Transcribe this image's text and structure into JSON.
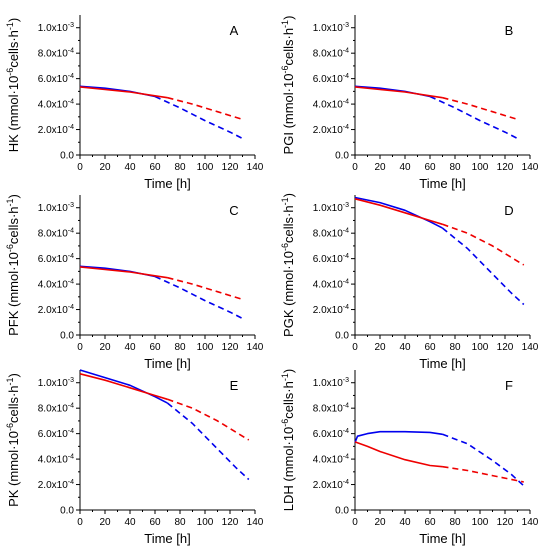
{
  "chart_data": [
    {
      "type": "line",
      "panel_label": "A",
      "xlabel": "Time [h]",
      "ylabel_prefix": "HK (mmol·10",
      "ylabel_exp": "-6",
      "ylabel_mid": "cells·h",
      "ylabel_exp2": "-1",
      "ylabel_suffix": ")",
      "xlim": [
        0,
        140
      ],
      "ylim": [
        0,
        0.0011
      ],
      "x_ticks": [
        "0",
        "20",
        "40",
        "60",
        "80",
        "100",
        "120",
        "140"
      ],
      "y_ticks": [
        {
          "v": 0.0,
          "m": "0.0",
          "e": ""
        },
        {
          "v": 0.0002,
          "m": "2.0x10",
          "e": "-4"
        },
        {
          "v": 0.0004,
          "m": "4.0x10",
          "e": "-4"
        },
        {
          "v": 0.0006,
          "m": "6.0x10",
          "e": "-4"
        },
        {
          "v": 0.0008,
          "m": "8.0x10",
          "e": "-4"
        },
        {
          "v": 0.001,
          "m": "1.0x10",
          "e": "-3"
        }
      ],
      "series": [
        {
          "color": "#0000ee",
          "style": "solid",
          "x": [
            0,
            20,
            40,
            60
          ],
          "y": [
            0.00054,
            0.000525,
            0.0005,
            0.00046
          ]
        },
        {
          "color": "#0000ee",
          "style": "dashed",
          "x": [
            60,
            80,
            100,
            120,
            130
          ],
          "y": [
            0.00046,
            0.00037,
            0.00027,
            0.00018,
            0.00013
          ]
        },
        {
          "color": "#ee0000",
          "style": "solid",
          "x": [
            0,
            20,
            40,
            60,
            70
          ],
          "y": [
            0.000535,
            0.000515,
            0.000495,
            0.000465,
            0.00045
          ]
        },
        {
          "color": "#ee0000",
          "style": "dashed",
          "x": [
            70,
            90,
            110,
            130
          ],
          "y": [
            0.00045,
            0.0004,
            0.00034,
            0.00028
          ]
        }
      ]
    },
    {
      "type": "line",
      "panel_label": "B",
      "xlabel": "Time [h]",
      "ylabel_prefix": "PGI (mmol·10",
      "ylabel_exp": "-6",
      "ylabel_mid": "cells·h",
      "ylabel_exp2": "-1",
      "ylabel_suffix": ")",
      "xlim": [
        0,
        140
      ],
      "ylim": [
        0,
        0.0011
      ],
      "x_ticks": [
        "0",
        "20",
        "40",
        "60",
        "80",
        "100",
        "120",
        "140"
      ],
      "y_ticks": [
        {
          "v": 0.0,
          "m": "0.0",
          "e": ""
        },
        {
          "v": 0.0002,
          "m": "2.0x10",
          "e": "-4"
        },
        {
          "v": 0.0004,
          "m": "4.0x10",
          "e": "-4"
        },
        {
          "v": 0.0006,
          "m": "6.0x10",
          "e": "-4"
        },
        {
          "v": 0.0008,
          "m": "8.0x10",
          "e": "-4"
        },
        {
          "v": 0.001,
          "m": "1.0x10",
          "e": "-3"
        }
      ],
      "series": [
        {
          "color": "#0000ee",
          "style": "solid",
          "x": [
            0,
            20,
            40,
            60
          ],
          "y": [
            0.00054,
            0.000525,
            0.0005,
            0.00046
          ]
        },
        {
          "color": "#0000ee",
          "style": "dashed",
          "x": [
            60,
            80,
            100,
            120,
            130
          ],
          "y": [
            0.00046,
            0.00037,
            0.00027,
            0.00018,
            0.00013
          ]
        },
        {
          "color": "#ee0000",
          "style": "solid",
          "x": [
            0,
            20,
            40,
            60,
            70
          ],
          "y": [
            0.000535,
            0.000515,
            0.000495,
            0.000465,
            0.00045
          ]
        },
        {
          "color": "#ee0000",
          "style": "dashed",
          "x": [
            70,
            90,
            110,
            130
          ],
          "y": [
            0.00045,
            0.0004,
            0.00034,
            0.00028
          ]
        }
      ]
    },
    {
      "type": "line",
      "panel_label": "C",
      "xlabel": "Time [h]",
      "ylabel_prefix": "PFK (mmol·10",
      "ylabel_exp": "-6",
      "ylabel_mid": "cells·h",
      "ylabel_exp2": "-1",
      "ylabel_suffix": ")",
      "xlim": [
        0,
        140
      ],
      "ylim": [
        0,
        0.0011
      ],
      "x_ticks": [
        "0",
        "20",
        "40",
        "60",
        "80",
        "100",
        "120",
        "140"
      ],
      "y_ticks": [
        {
          "v": 0.0,
          "m": "0.0",
          "e": ""
        },
        {
          "v": 0.0002,
          "m": "2.0x10",
          "e": "-4"
        },
        {
          "v": 0.0004,
          "m": "4.0x10",
          "e": "-4"
        },
        {
          "v": 0.0006,
          "m": "6.0x10",
          "e": "-4"
        },
        {
          "v": 0.0008,
          "m": "8.0x10",
          "e": "-4"
        },
        {
          "v": 0.001,
          "m": "1.0x10",
          "e": "-3"
        }
      ],
      "series": [
        {
          "color": "#0000ee",
          "style": "solid",
          "x": [
            0,
            20,
            40,
            60
          ],
          "y": [
            0.00054,
            0.000525,
            0.0005,
            0.00046
          ]
        },
        {
          "color": "#0000ee",
          "style": "dashed",
          "x": [
            60,
            80,
            100,
            120,
            130
          ],
          "y": [
            0.00046,
            0.00037,
            0.00027,
            0.00018,
            0.00013
          ]
        },
        {
          "color": "#ee0000",
          "style": "solid",
          "x": [
            0,
            20,
            40,
            60,
            70
          ],
          "y": [
            0.000535,
            0.000515,
            0.000495,
            0.000465,
            0.00045
          ]
        },
        {
          "color": "#ee0000",
          "style": "dashed",
          "x": [
            70,
            90,
            110,
            130
          ],
          "y": [
            0.00045,
            0.0004,
            0.00034,
            0.00028
          ]
        }
      ]
    },
    {
      "type": "line",
      "panel_label": "D",
      "xlabel": "Time [h]",
      "ylabel_prefix": "PGK (mmol·10",
      "ylabel_exp": "-6",
      "ylabel_mid": "cells·h",
      "ylabel_exp2": "-1",
      "ylabel_suffix": ")",
      "xlim": [
        0,
        140
      ],
      "ylim": [
        0,
        0.0011
      ],
      "x_ticks": [
        "0",
        "20",
        "40",
        "60",
        "80",
        "100",
        "120",
        "140"
      ],
      "y_ticks": [
        {
          "v": 0.0,
          "m": "0.0",
          "e": ""
        },
        {
          "v": 0.0002,
          "m": "2.0x10",
          "e": "-4"
        },
        {
          "v": 0.0004,
          "m": "4.0x10",
          "e": "-4"
        },
        {
          "v": 0.0006,
          "m": "6.0x10",
          "e": "-4"
        },
        {
          "v": 0.0008,
          "m": "8.0x10",
          "e": "-4"
        },
        {
          "v": 0.001,
          "m": "1.0x10",
          "e": "-3"
        }
      ],
      "series": [
        {
          "color": "#0000ee",
          "style": "solid",
          "x": [
            0,
            20,
            40,
            60,
            70
          ],
          "y": [
            0.00108,
            0.00104,
            0.00098,
            0.00089,
            0.00084
          ]
        },
        {
          "color": "#0000ee",
          "style": "dashed",
          "x": [
            70,
            90,
            110,
            125,
            135
          ],
          "y": [
            0.00084,
            0.00068,
            0.00048,
            0.00033,
            0.00024
          ]
        },
        {
          "color": "#ee0000",
          "style": "solid",
          "x": [
            0,
            20,
            40,
            60,
            70
          ],
          "y": [
            0.00107,
            0.00102,
            0.00096,
            0.0009,
            0.00087
          ]
        },
        {
          "color": "#ee0000",
          "style": "dashed",
          "x": [
            70,
            90,
            110,
            135
          ],
          "y": [
            0.00087,
            0.0008,
            0.0007,
            0.00055
          ]
        }
      ]
    },
    {
      "type": "line",
      "panel_label": "E",
      "xlabel": "Time [h]",
      "ylabel_prefix": "PK (mmol·10",
      "ylabel_exp": "-6",
      "ylabel_mid": "cells·h",
      "ylabel_exp2": "-1",
      "ylabel_suffix": ")",
      "xlim": [
        0,
        140
      ],
      "ylim": [
        0,
        0.0011
      ],
      "x_ticks": [
        "0",
        "20",
        "40",
        "60",
        "80",
        "100",
        "120",
        "140"
      ],
      "y_ticks": [
        {
          "v": 0.0,
          "m": "0.0",
          "e": ""
        },
        {
          "v": 0.0002,
          "m": "2.0x10",
          "e": "-4"
        },
        {
          "v": 0.0004,
          "m": "4.0x10",
          "e": "-4"
        },
        {
          "v": 0.0006,
          "m": "6.0x10",
          "e": "-4"
        },
        {
          "v": 0.0008,
          "m": "8.0x10",
          "e": "-4"
        },
        {
          "v": 0.001,
          "m": "1.0x10",
          "e": "-3"
        }
      ],
      "series": [
        {
          "color": "#0000ee",
          "style": "solid",
          "x": [
            0,
            20,
            40,
            60,
            70
          ],
          "y": [
            0.0011,
            0.00104,
            0.00098,
            0.00089,
            0.00084
          ]
        },
        {
          "color": "#0000ee",
          "style": "dashed",
          "x": [
            70,
            90,
            110,
            125,
            135
          ],
          "y": [
            0.00084,
            0.00068,
            0.00048,
            0.00033,
            0.00024
          ]
        },
        {
          "color": "#ee0000",
          "style": "solid",
          "x": [
            0,
            20,
            40,
            60,
            70
          ],
          "y": [
            0.00107,
            0.00102,
            0.00096,
            0.0009,
            0.00087
          ]
        },
        {
          "color": "#ee0000",
          "style": "dashed",
          "x": [
            70,
            90,
            110,
            135
          ],
          "y": [
            0.00087,
            0.0008,
            0.0007,
            0.00055
          ]
        }
      ]
    },
    {
      "type": "line",
      "panel_label": "F",
      "xlabel": "Time [h]",
      "ylabel_prefix": "LDH (mmol·10",
      "ylabel_exp": "-6",
      "ylabel_mid": "cells·h",
      "ylabel_exp2": "-1",
      "ylabel_suffix": ")",
      "xlim": [
        0,
        140
      ],
      "ylim": [
        0,
        0.0011
      ],
      "x_ticks": [
        "0",
        "20",
        "40",
        "60",
        "80",
        "100",
        "120",
        "140"
      ],
      "y_ticks": [
        {
          "v": 0.0,
          "m": "0.0",
          "e": ""
        },
        {
          "v": 0.0002,
          "m": "2.0x10",
          "e": "-4"
        },
        {
          "v": 0.0004,
          "m": "4.0x10",
          "e": "-4"
        },
        {
          "v": 0.0006,
          "m": "6.0x10",
          "e": "-4"
        },
        {
          "v": 0.0008,
          "m": "8.0x10",
          "e": "-4"
        },
        {
          "v": 0.001,
          "m": "1.0x10",
          "e": "-3"
        }
      ],
      "series": [
        {
          "color": "#0000ee",
          "style": "solid",
          "x": [
            0,
            2,
            10,
            20,
            40,
            60,
            70
          ],
          "y": [
            0.00053,
            0.00058,
            0.0006,
            0.000615,
            0.000615,
            0.00061,
            0.000595
          ]
        },
        {
          "color": "#0000ee",
          "style": "dashed",
          "x": [
            70,
            90,
            110,
            125,
            135
          ],
          "y": [
            0.000595,
            0.00052,
            0.00039,
            0.00028,
            0.00019
          ]
        },
        {
          "color": "#ee0000",
          "style": "solid",
          "x": [
            0,
            10,
            20,
            40,
            60,
            70
          ],
          "y": [
            0.000535,
            0.0005,
            0.00046,
            0.000395,
            0.00035,
            0.00034
          ]
        },
        {
          "color": "#ee0000",
          "style": "dashed",
          "x": [
            70,
            90,
            110,
            135
          ],
          "y": [
            0.00034,
            0.00031,
            0.00027,
            0.00022
          ]
        }
      ]
    }
  ]
}
